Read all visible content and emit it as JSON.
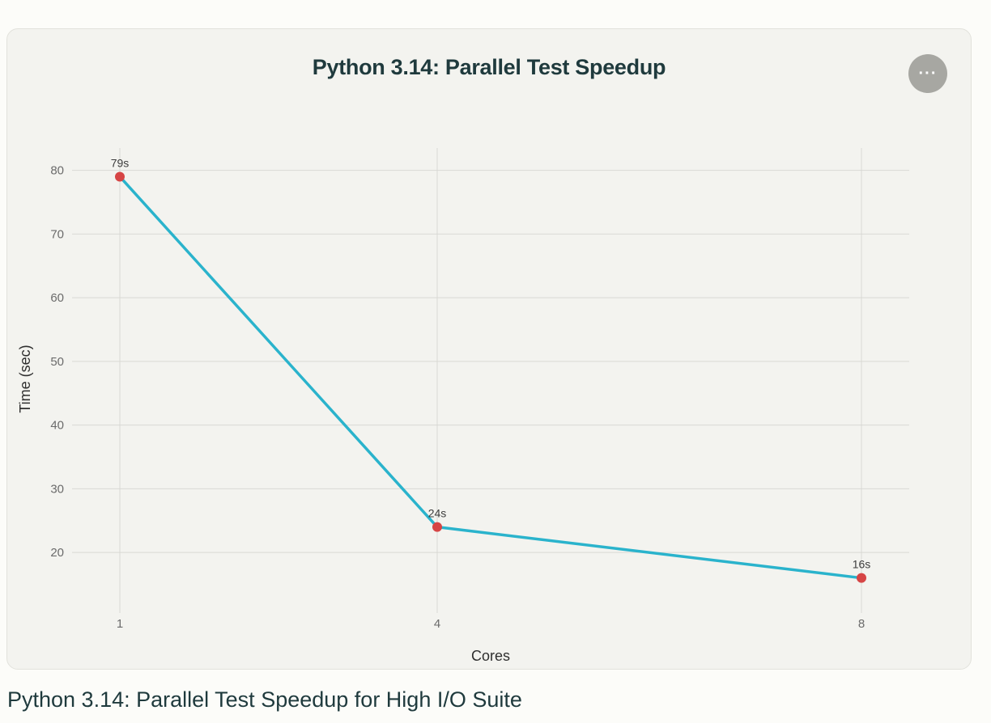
{
  "colors": {
    "line": "#2ab3cc",
    "marker": "#d64545",
    "grid": "#d9d9d4",
    "card_bg": "#f3f3ef",
    "page_bg": "#fcfcf9",
    "title": "#1f3a3d"
  },
  "menu_button": {
    "icon": "more-horizontal-icon",
    "glyph": "···"
  },
  "caption": "Python 3.14: Parallel Test Speedup for High I/O Suite",
  "chart_data": {
    "type": "line",
    "title": "Python 3.14: Parallel Test Speedup",
    "xlabel": "Cores",
    "ylabel": "Time (sec)",
    "categories": [
      "1",
      "4",
      "8"
    ],
    "series": [
      {
        "name": "Time (sec)",
        "values": [
          79,
          24,
          16
        ],
        "labels": [
          "79s",
          "24s",
          "16s"
        ]
      }
    ],
    "yticks": [
      20,
      30,
      40,
      50,
      60,
      70,
      80
    ],
    "ylim": [
      10.5,
      83.5
    ],
    "grid": true
  }
}
